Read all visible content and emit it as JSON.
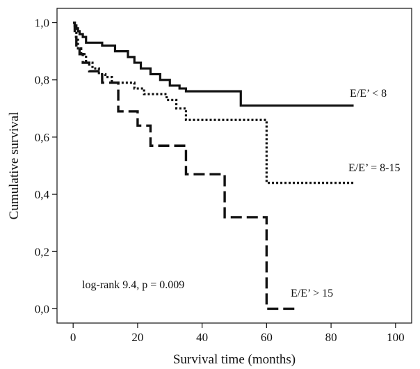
{
  "chart_data": {
    "type": "line",
    "xlabel": "Survival time (months)",
    "ylabel": "Cumulative survival",
    "xlim": [
      -5,
      105
    ],
    "ylim": [
      -0.05,
      1.05
    ],
    "x_ticks": [
      0,
      20,
      40,
      60,
      80,
      100
    ],
    "y_ticks": [
      0.0,
      0.2,
      0.4,
      0.6,
      0.8,
      1.0
    ],
    "x_tick_labels": [
      "0",
      "20",
      "40",
      "60",
      "80",
      "100"
    ],
    "y_tick_labels": [
      "0,0",
      "0,2",
      "0,4",
      "0,6",
      "0,8",
      "1,0"
    ],
    "grid": false,
    "annotation": "log-rank 9.4, p = 0.009",
    "series": [
      {
        "name": "E/E’ < 8",
        "style": "solid",
        "x": [
          0,
          0.5,
          1,
          1.5,
          2,
          3,
          4,
          6,
          9,
          13,
          17,
          19,
          21,
          24,
          27,
          30,
          33,
          35,
          38,
          52,
          87
        ],
        "y": [
          1.0,
          0.99,
          0.98,
          0.97,
          0.96,
          0.95,
          0.93,
          0.93,
          0.92,
          0.9,
          0.88,
          0.86,
          0.84,
          0.82,
          0.8,
          0.78,
          0.77,
          0.76,
          0.76,
          0.71,
          0.71
        ]
      },
      {
        "name": "E/E’ = 8-15",
        "style": "dotted",
        "x": [
          0,
          0.5,
          1,
          1.5,
          2.5,
          4,
          6,
          8,
          10,
          12,
          16,
          19,
          22,
          29,
          32,
          35,
          60,
          87
        ],
        "y": [
          1.0,
          0.98,
          0.94,
          0.91,
          0.89,
          0.86,
          0.84,
          0.82,
          0.81,
          0.79,
          0.79,
          0.77,
          0.75,
          0.73,
          0.7,
          0.66,
          0.44,
          0.44
        ]
      },
      {
        "name": "E/E’ > 15",
        "style": "dashed",
        "x": [
          0,
          0.5,
          1,
          2,
          3,
          5,
          9,
          14,
          20,
          24,
          35,
          47,
          60,
          69
        ],
        "y": [
          1.0,
          0.95,
          0.91,
          0.89,
          0.86,
          0.83,
          0.79,
          0.69,
          0.64,
          0.57,
          0.47,
          0.32,
          0.0,
          0.0
        ]
      }
    ],
    "series_labels": [
      "E/E’ < 8",
      "E/E’ = 8-15",
      "E/E’ > 15"
    ]
  }
}
